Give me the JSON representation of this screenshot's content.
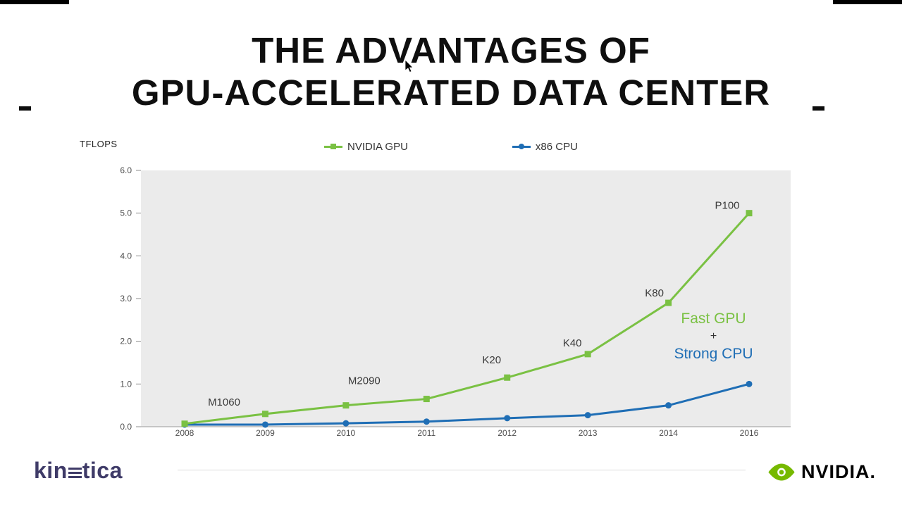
{
  "slide": {
    "title_line1": "THE ADVANTAGES OF",
    "title_line2": "GPU-ACCELERATED DATA CENTER"
  },
  "chart_data": {
    "type": "line",
    "title": "",
    "xlabel": "",
    "ylabel": "TFLOPS",
    "ylim": [
      0,
      6
    ],
    "yticks": [
      0,
      1,
      2,
      3,
      4,
      5,
      6
    ],
    "categories": [
      "2008",
      "2009",
      "2010",
      "2011",
      "2012",
      "2013",
      "2014",
      "2016"
    ],
    "grid": false,
    "legend_position": "top",
    "plot_bg": "#ebebeb",
    "series": [
      {
        "name": "NVIDIA GPU",
        "color": "#7ac143",
        "marker": "square",
        "values": [
          0.07,
          0.3,
          0.5,
          0.65,
          1.15,
          1.7,
          2.9,
          5.0
        ],
        "point_labels": {
          "0": "M1060",
          "2": "M2090",
          "4": "K20",
          "5": "K40",
          "6": "K80",
          "7": "P100"
        }
      },
      {
        "name": "x86 CPU",
        "color": "#1f6eb5",
        "marker": "circle",
        "values": [
          0.05,
          0.05,
          0.08,
          0.12,
          0.2,
          0.27,
          0.5,
          1.0
        ]
      }
    ],
    "annotation": {
      "top": "Fast GPU",
      "mid": "+",
      "bottom": "Strong CPU",
      "top_color": "#7ac143",
      "bottom_color": "#1f6eb5"
    }
  },
  "footer": {
    "kinetica_prefix": "kin",
    "kinetica_suffix": "tica",
    "nvidia_wordmark": "NVIDIA."
  },
  "brand": {
    "kinetica_color": "#3f3b68",
    "nvidia_green": "#76b900"
  }
}
